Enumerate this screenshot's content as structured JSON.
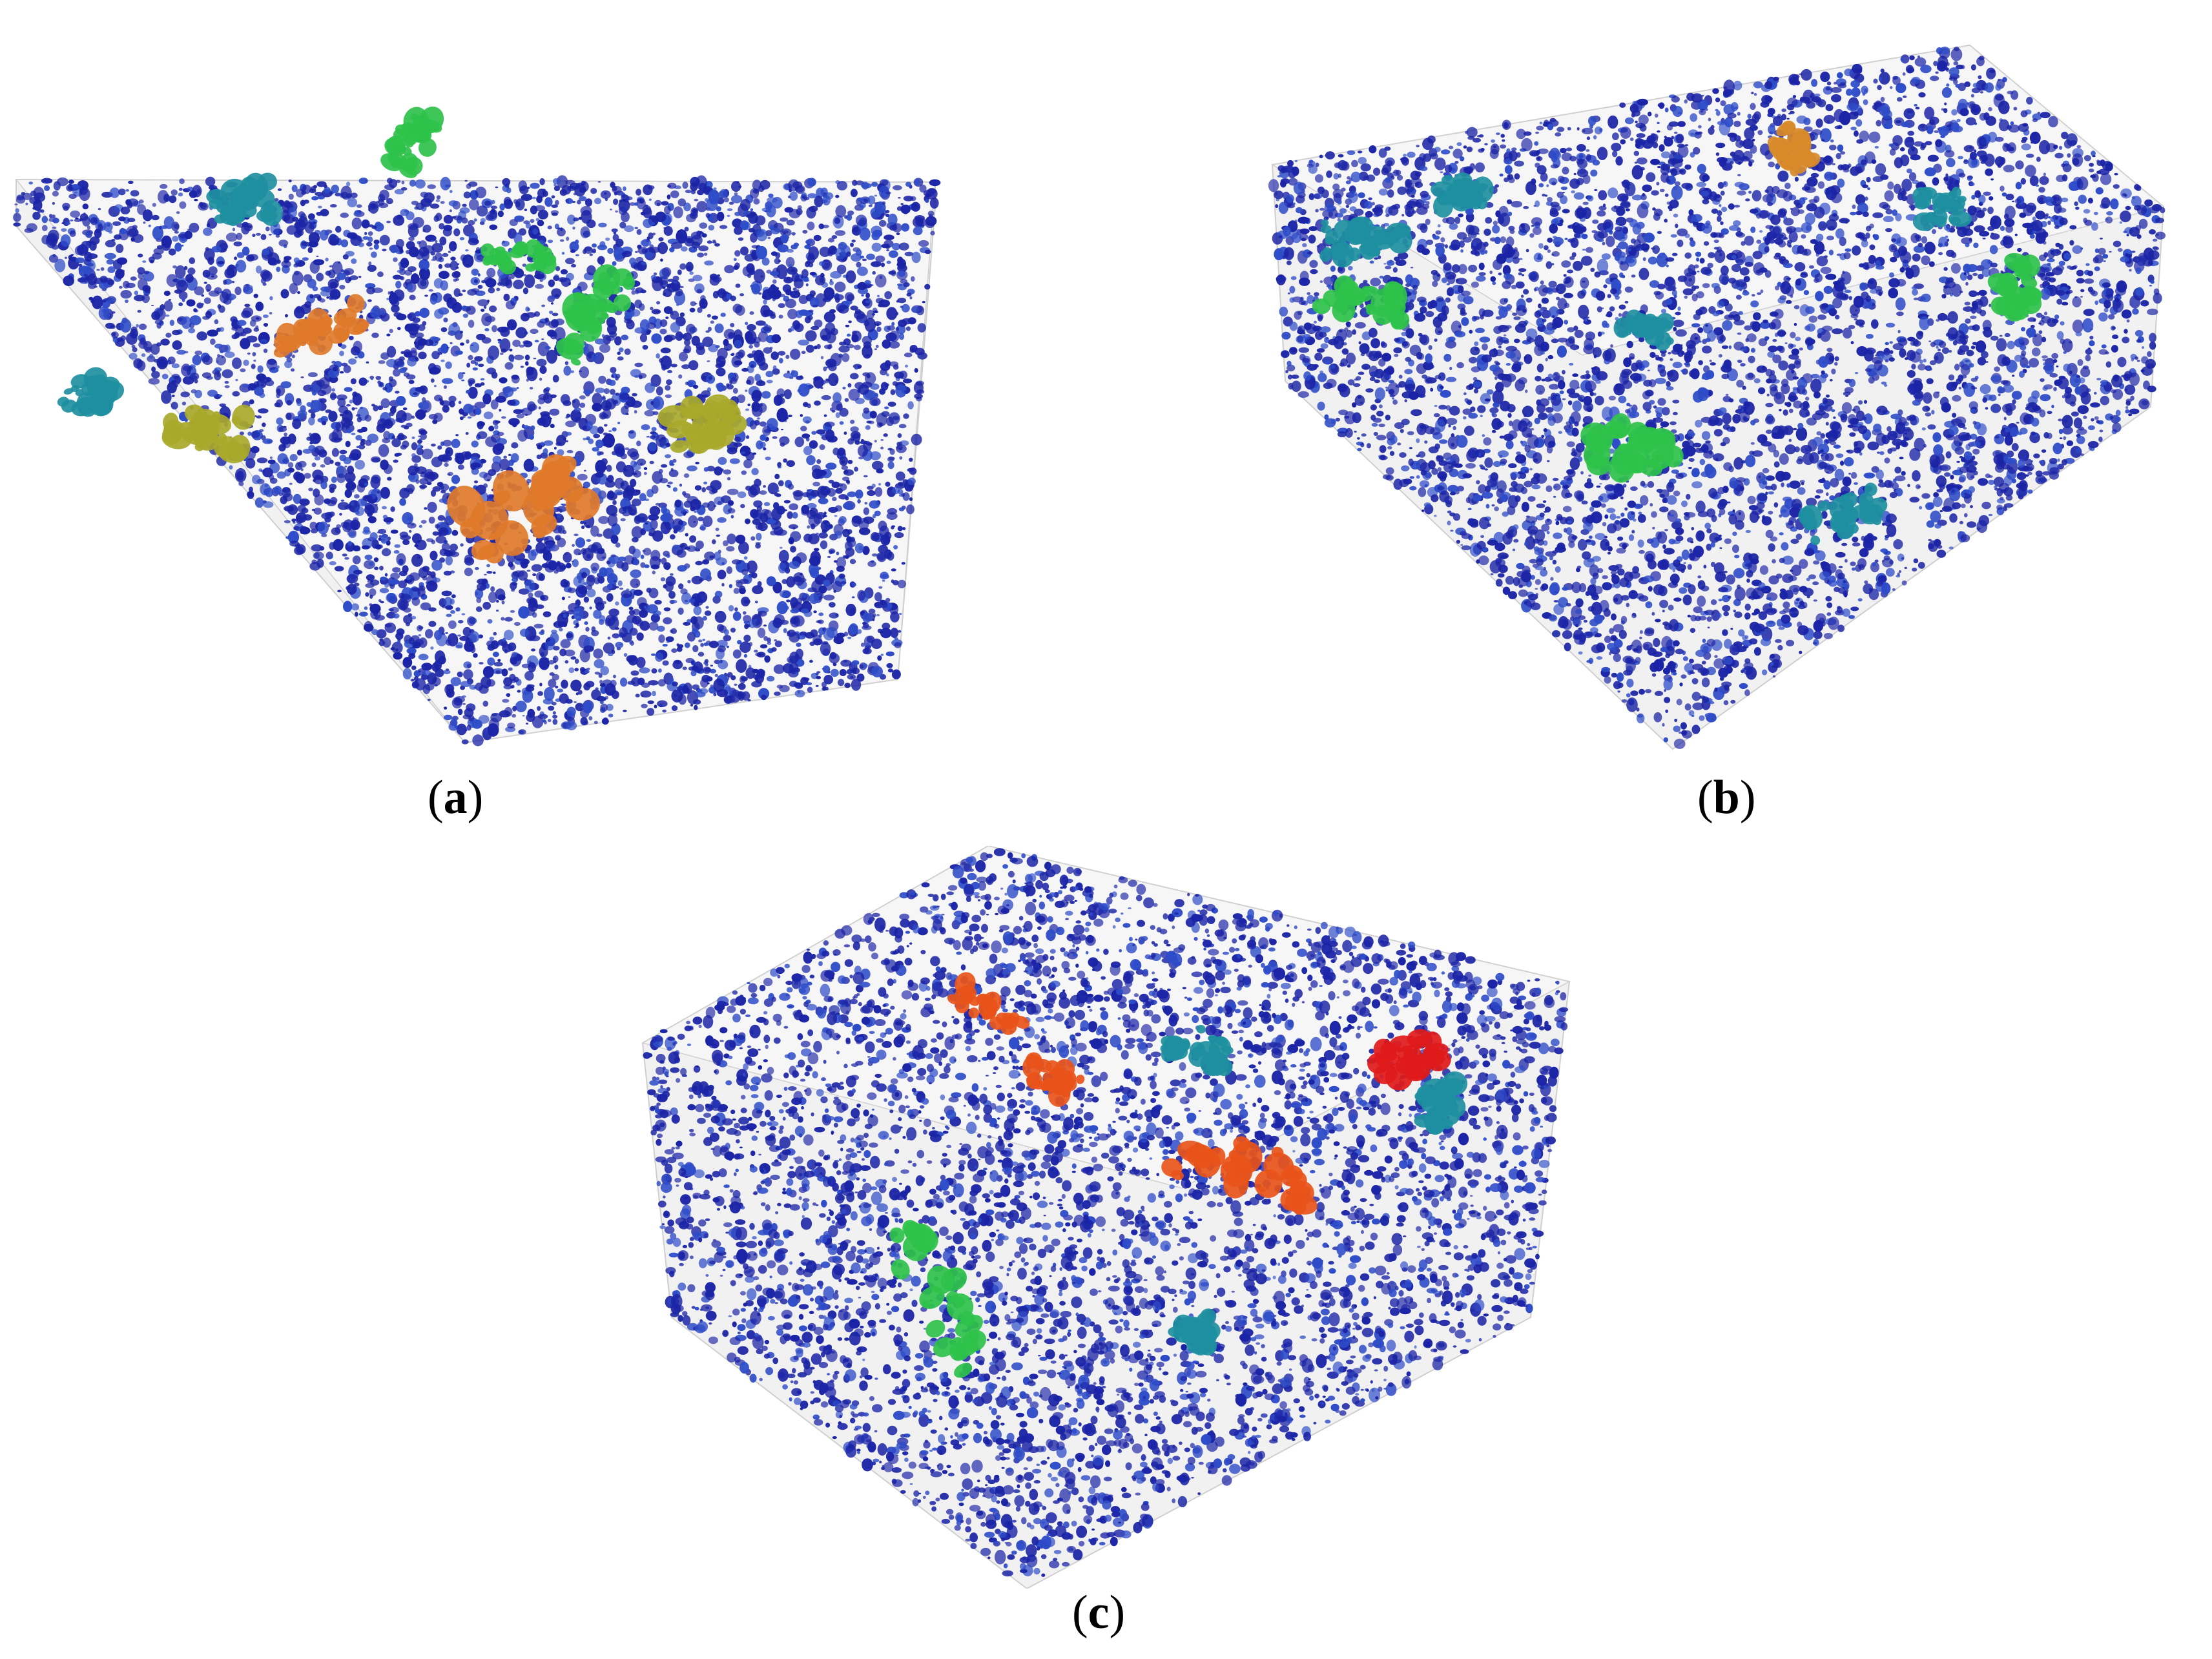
{
  "panels": [
    {
      "id": "a",
      "caption_open": "(",
      "caption_letter": "a",
      "caption_close": ")",
      "dominant_color": "#1a2aa8",
      "highlight_colors": [
        "#e07a2a",
        "#2ec24a",
        "#1e8fa0",
        "#a8a82a",
        "#e03a1a"
      ]
    },
    {
      "id": "b",
      "caption_open": "(",
      "caption_letter": "b",
      "caption_close": ")",
      "dominant_color": "#1a2aa8",
      "highlight_colors": [
        "#2ec24a",
        "#1e8fa0",
        "#d88a2a"
      ]
    },
    {
      "id": "c",
      "caption_open": "(",
      "caption_letter": "c",
      "caption_close": ")",
      "dominant_color": "#1a2aa8",
      "highlight_colors": [
        "#e8541a",
        "#e01a1a",
        "#2ec24a",
        "#1e8fa0"
      ]
    }
  ],
  "colors": {
    "pore_blue": "#1b24a6",
    "pore_blue_light": "#2e4cc8",
    "box_face": "#e6e6e6",
    "box_edge": "#cfcfcf"
  }
}
